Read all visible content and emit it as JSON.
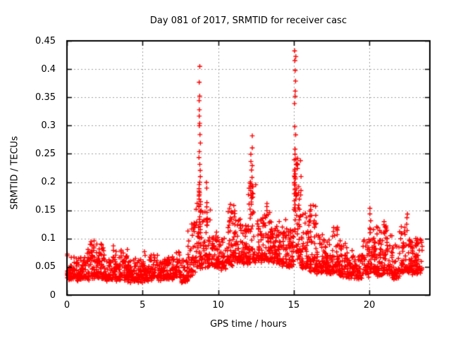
{
  "title": "Day 081 of 2017, SRMTID for receiver casc",
  "colors": {
    "marker": "#ff0000",
    "grid": "#a0a0a0",
    "axis": "#000000",
    "background": "#ffffff",
    "text": "#000000"
  },
  "chart_data": {
    "type": "scatter",
    "title": "Day 081 of 2017, SRMTID for receiver casc",
    "xlabel": "GPS time / hours",
    "ylabel": "SRMTID / TECUs",
    "xlim": [
      0,
      24
    ],
    "ylim": [
      0,
      0.45
    ],
    "xticks": [
      "0",
      "5",
      "10",
      "15",
      "20"
    ],
    "xtick_values": [
      0,
      5,
      10,
      15,
      20
    ],
    "yticks": [
      "0",
      "0.05",
      "0.1",
      "0.15",
      "0.2",
      "0.25",
      "0.3",
      "0.35",
      "0.4",
      "0.45"
    ],
    "ytick_values": [
      0,
      0.05,
      0.1,
      0.15,
      0.2,
      0.25,
      0.3,
      0.35,
      0.4,
      0.45
    ],
    "grid": true,
    "legend": "none",
    "marker": "+",
    "marker_color": "#ff0000",
    "seed": 81,
    "envelope_bins": [
      [
        0.0,
        0.5,
        45,
        0.03,
        0.07
      ],
      [
        0.5,
        1.0,
        45,
        0.028,
        0.065
      ],
      [
        1.0,
        1.5,
        45,
        0.03,
        0.08
      ],
      [
        1.5,
        2.0,
        50,
        0.032,
        0.095
      ],
      [
        2.0,
        2.5,
        50,
        0.03,
        0.09
      ],
      [
        2.5,
        3.0,
        45,
        0.028,
        0.065
      ],
      [
        3.0,
        3.5,
        45,
        0.028,
        0.078
      ],
      [
        3.5,
        4.0,
        45,
        0.03,
        0.08
      ],
      [
        4.0,
        4.5,
        45,
        0.025,
        0.06
      ],
      [
        4.5,
        5.0,
        45,
        0.025,
        0.065
      ],
      [
        5.0,
        5.5,
        45,
        0.027,
        0.062
      ],
      [
        5.5,
        6.0,
        45,
        0.03,
        0.072
      ],
      [
        6.0,
        6.5,
        45,
        0.028,
        0.065
      ],
      [
        6.5,
        7.0,
        45,
        0.03,
        0.065
      ],
      [
        7.0,
        7.5,
        45,
        0.03,
        0.075
      ],
      [
        7.5,
        8.0,
        40,
        0.025,
        0.06
      ],
      [
        8.0,
        8.5,
        45,
        0.035,
        0.13
      ],
      [
        8.5,
        9.0,
        45,
        0.05,
        0.19
      ],
      [
        9.0,
        9.5,
        45,
        0.05,
        0.16
      ],
      [
        9.5,
        10.0,
        45,
        0.05,
        0.11
      ],
      [
        10.0,
        10.5,
        45,
        0.045,
        0.1
      ],
      [
        10.5,
        11.0,
        50,
        0.055,
        0.16
      ],
      [
        11.0,
        11.5,
        50,
        0.06,
        0.16
      ],
      [
        11.5,
        12.0,
        50,
        0.055,
        0.13
      ],
      [
        12.0,
        12.5,
        55,
        0.06,
        0.2
      ],
      [
        12.5,
        13.0,
        50,
        0.06,
        0.14
      ],
      [
        13.0,
        13.5,
        50,
        0.06,
        0.16
      ],
      [
        13.5,
        14.0,
        50,
        0.06,
        0.13
      ],
      [
        14.0,
        14.5,
        50,
        0.055,
        0.14
      ],
      [
        14.5,
        15.0,
        50,
        0.05,
        0.12
      ],
      [
        15.0,
        15.5,
        55,
        0.06,
        0.24
      ],
      [
        15.5,
        16.0,
        50,
        0.05,
        0.15
      ],
      [
        16.0,
        16.5,
        50,
        0.045,
        0.16
      ],
      [
        16.5,
        17.0,
        48,
        0.04,
        0.11
      ],
      [
        17.0,
        17.5,
        48,
        0.04,
        0.1
      ],
      [
        17.5,
        18.0,
        48,
        0.04,
        0.12
      ],
      [
        18.0,
        18.5,
        46,
        0.035,
        0.1
      ],
      [
        18.5,
        19.0,
        45,
        0.033,
        0.08
      ],
      [
        19.0,
        19.5,
        38,
        0.03,
        0.07
      ],
      [
        19.5,
        20.0,
        45,
        0.035,
        0.1
      ],
      [
        20.0,
        20.5,
        48,
        0.04,
        0.12
      ],
      [
        20.5,
        21.0,
        46,
        0.035,
        0.13
      ],
      [
        21.0,
        21.5,
        46,
        0.04,
        0.12
      ],
      [
        21.5,
        22.0,
        44,
        0.03,
        0.09
      ],
      [
        22.0,
        22.5,
        46,
        0.04,
        0.13
      ],
      [
        22.5,
        23.0,
        48,
        0.04,
        0.1
      ],
      [
        23.0,
        23.5,
        52,
        0.04,
        0.11
      ]
    ],
    "spike_columns": [
      {
        "x": 8.78,
        "jitter": 0.06,
        "ys": [
          0.403,
          0.378,
          0.352,
          0.345,
          0.33,
          0.318,
          0.305,
          0.3,
          0.285,
          0.268,
          0.255,
          0.245,
          0.232,
          0.22,
          0.21,
          0.2,
          0.195,
          0.19,
          0.185,
          0.18,
          0.175,
          0.17,
          0.165,
          0.16,
          0.155,
          0.15,
          0.145,
          0.14,
          0.135,
          0.13,
          0.125,
          0.12,
          0.115,
          0.11
        ]
      },
      {
        "x": 9.22,
        "jitter": 0.05,
        "ys": [
          0.2,
          0.19,
          0.165,
          0.155,
          0.145,
          0.135,
          0.125
        ]
      },
      {
        "x": 12.2,
        "jitter": 0.08,
        "ys": [
          0.28,
          0.262,
          0.248,
          0.237,
          0.228,
          0.22,
          0.21,
          0.2,
          0.195,
          0.19,
          0.185,
          0.18,
          0.175,
          0.17,
          0.165,
          0.16
        ]
      },
      {
        "x": 15.1,
        "jitter": 0.06,
        "ys": [
          0.432,
          0.424,
          0.417,
          0.397,
          0.38,
          0.362,
          0.35,
          0.34,
          0.3,
          0.285,
          0.26,
          0.25,
          0.24,
          0.23,
          0.222,
          0.218,
          0.215,
          0.212,
          0.21,
          0.207,
          0.204,
          0.2,
          0.195,
          0.19,
          0.185,
          0.18,
          0.175,
          0.17,
          0.165,
          0.16,
          0.155,
          0.15
        ]
      },
      {
        "x": 15.35,
        "jitter": 0.04,
        "ys": [
          0.19,
          0.18,
          0.17,
          0.16,
          0.15
        ]
      },
      {
        "x": 16.12,
        "jitter": 0.05,
        "ys": [
          0.16,
          0.15,
          0.14,
          0.13
        ]
      },
      {
        "x": 20.07,
        "jitter": 0.05,
        "ys": [
          0.155,
          0.143,
          0.132,
          0.12,
          0.11
        ]
      },
      {
        "x": 21.0,
        "jitter": 0.04,
        "ys": [
          0.13,
          0.12,
          0.11
        ]
      },
      {
        "x": 22.5,
        "jitter": 0.05,
        "ys": [
          0.145,
          0.135,
          0.125,
          0.115
        ]
      },
      {
        "x": 11.05,
        "jitter": 0.05,
        "ys": [
          0.16,
          0.15,
          0.14
        ]
      },
      {
        "x": 13.2,
        "jitter": 0.05,
        "ys": [
          0.16,
          0.15
        ]
      },
      {
        "x": 1.75,
        "jitter": 0.05,
        "ys": [
          0.095,
          0.088,
          0.082
        ]
      },
      {
        "x": 2.35,
        "jitter": 0.06,
        "ys": [
          0.09,
          0.085
        ]
      },
      {
        "x": 3.1,
        "jitter": 0.05,
        "ys": [
          0.088,
          0.08
        ]
      },
      {
        "x": 5.15,
        "jitter": 0.05,
        "ys": [
          0.078,
          0.072
        ]
      },
      {
        "x": 8.3,
        "jitter": 0.06,
        "ys": [
          0.125,
          0.115,
          0.105
        ]
      }
    ]
  }
}
